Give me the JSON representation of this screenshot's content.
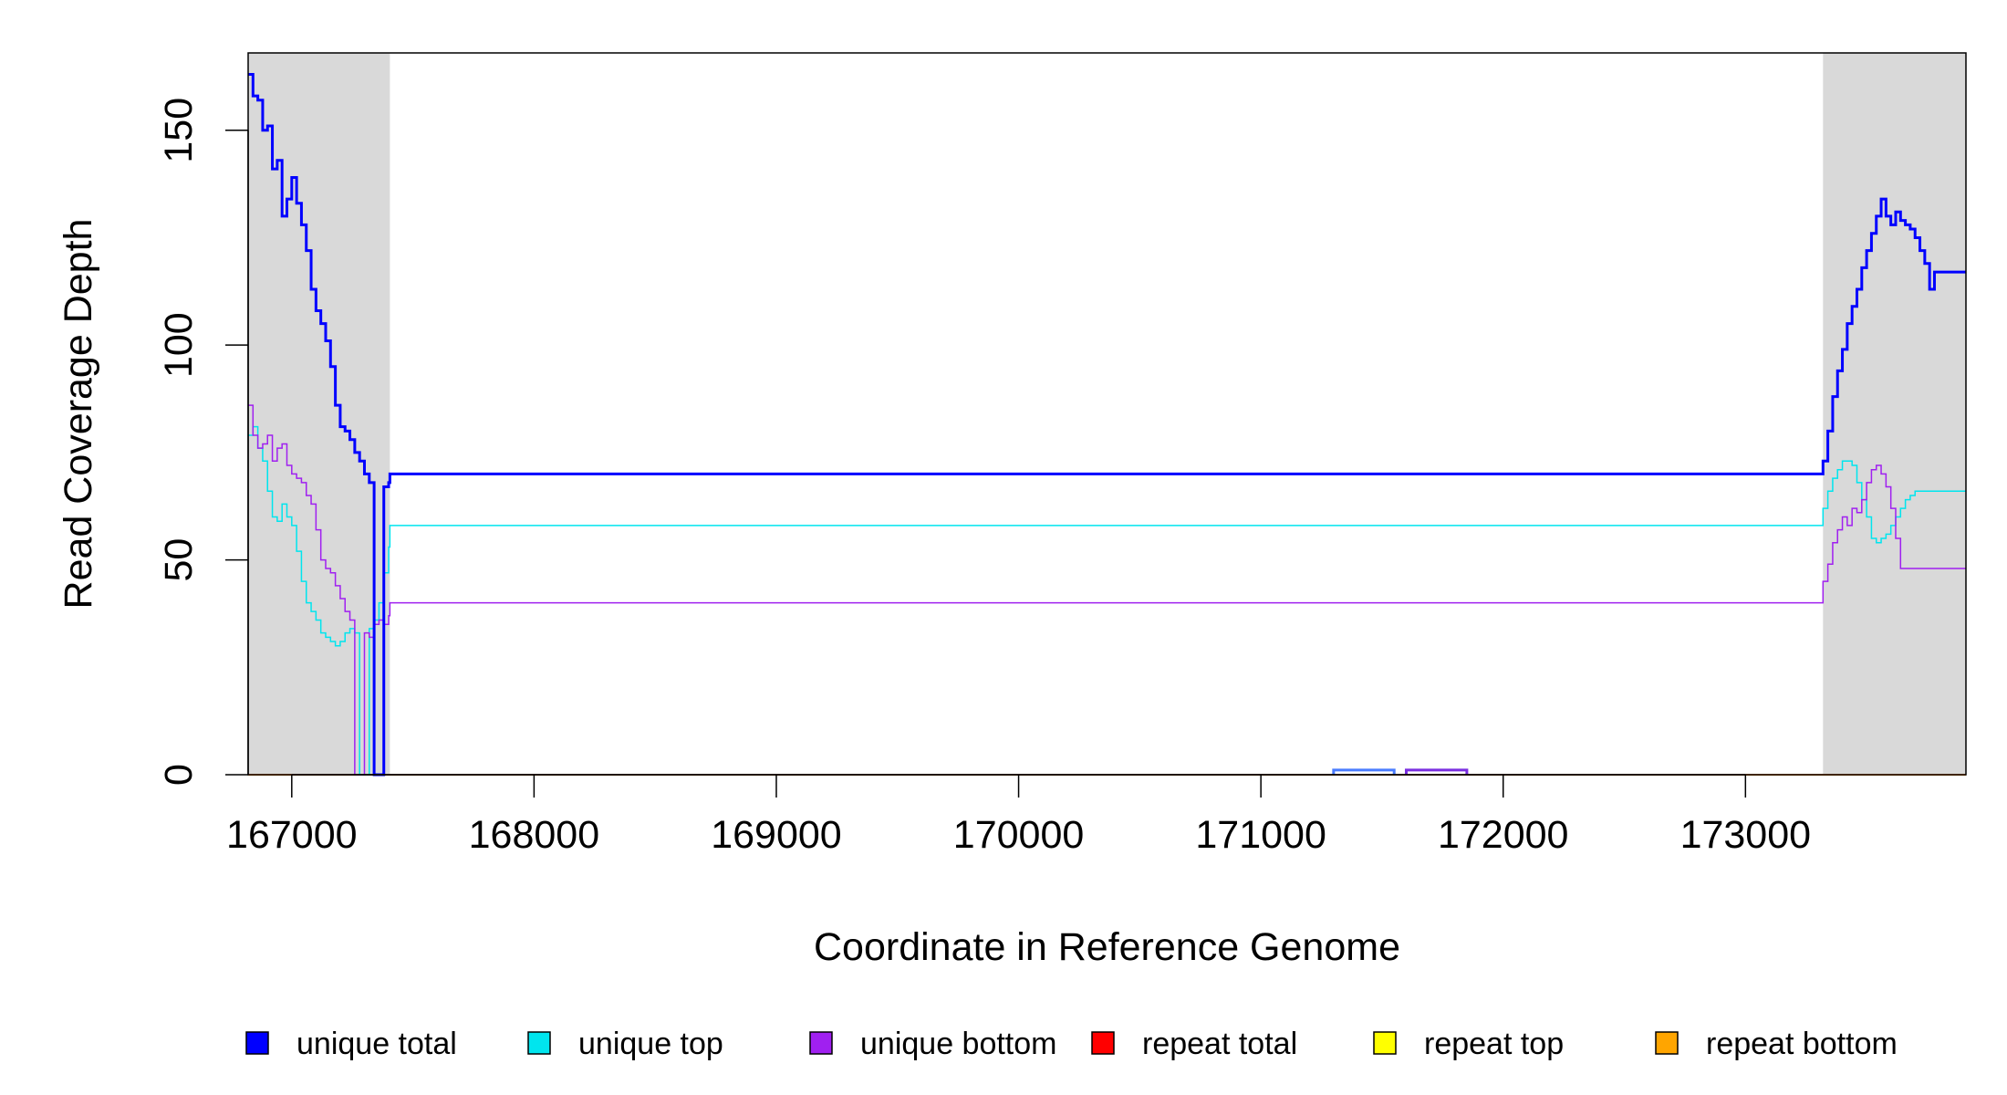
{
  "chart_data": {
    "type": "line",
    "xlabel": "Coordinate in Reference Genome",
    "ylabel": "Read Coverage Depth",
    "xlim": [
      166820,
      173910
    ],
    "ylim": [
      0,
      168
    ],
    "x_ticks": [
      167000,
      168000,
      169000,
      170000,
      171000,
      172000,
      173000
    ],
    "y_ticks": [
      0,
      50,
      100,
      150
    ],
    "grid": false,
    "shaded_regions": [
      {
        "x0": 166820,
        "x1": 167405,
        "color": "#d9d9d9"
      },
      {
        "x0": 173320,
        "x1": 173910,
        "color": "#d9d9d9"
      }
    ],
    "legend": {
      "placement": "bottom",
      "entries": [
        {
          "label": "unique total",
          "color": "#0000ff"
        },
        {
          "label": "unique top",
          "color": "#00e5ee"
        },
        {
          "label": "unique bottom",
          "color": "#a020f0"
        },
        {
          "label": "repeat total",
          "color": "#ff0000"
        },
        {
          "label": "repeat top",
          "color": "#ffff00"
        },
        {
          "label": "repeat bottom",
          "color": "#ffa500"
        }
      ]
    },
    "series": [
      {
        "name": "unique total",
        "color": "#0000ff",
        "x": [
          166820,
          166840,
          166860,
          166880,
          166900,
          166920,
          166940,
          166960,
          166980,
          167000,
          167020,
          167040,
          167060,
          167080,
          167100,
          167120,
          167140,
          167160,
          167180,
          167200,
          167220,
          167240,
          167260,
          167280,
          167300,
          167320,
          167340,
          167360,
          167380,
          167400,
          167405,
          173320,
          173340,
          173360,
          173380,
          173400,
          173420,
          173440,
          173460,
          173480,
          173500,
          173520,
          173540,
          173560,
          173580,
          173600,
          173620,
          173640,
          173660,
          173680,
          173700,
          173720,
          173740,
          173760,
          173780,
          173800,
          173820,
          173840,
          173860,
          173880,
          173900,
          173910
        ],
        "y": [
          163,
          158,
          157,
          150,
          151,
          141,
          143,
          130,
          134,
          139,
          133,
          128,
          122,
          113,
          108,
          105,
          101,
          95,
          86,
          81,
          80,
          78,
          75,
          73,
          70,
          68,
          0,
          0,
          67,
          68,
          70,
          73,
          80,
          88,
          94,
          99,
          105,
          109,
          113,
          118,
          122,
          126,
          130,
          134,
          130,
          128,
          131,
          129,
          128,
          127,
          125,
          122,
          119,
          113,
          117,
          117,
          117,
          117,
          117,
          117,
          117,
          117
        ],
        "width": 3
      },
      {
        "name": "unique top",
        "color": "#00e5ee",
        "x": [
          166820,
          166840,
          166860,
          166880,
          166900,
          166920,
          166940,
          166960,
          166980,
          167000,
          167020,
          167040,
          167060,
          167080,
          167100,
          167120,
          167140,
          167160,
          167180,
          167200,
          167220,
          167240,
          167260,
          167280,
          167300,
          167320,
          167340,
          167360,
          167380,
          167400,
          167405,
          173320,
          173340,
          173360,
          173380,
          173400,
          173420,
          173440,
          173460,
          173480,
          173500,
          173520,
          173540,
          173560,
          173580,
          173600,
          173620,
          173640,
          173660,
          173680,
          173700,
          173720,
          173740,
          173760,
          173780,
          173800,
          173820,
          173840,
          173860,
          173880,
          173900,
          173910
        ],
        "y": [
          79,
          81,
          76,
          73,
          66,
          60,
          59,
          63,
          60,
          58,
          52,
          45,
          40,
          38,
          36,
          33,
          32,
          31,
          30,
          31,
          33,
          34,
          33,
          0,
          0,
          34,
          36,
          40,
          47,
          53,
          58,
          62,
          66,
          69,
          71,
          73,
          73,
          72,
          68,
          64,
          60,
          55,
          54,
          55,
          56,
          58,
          60,
          62,
          64,
          65,
          66,
          66,
          66,
          66,
          66,
          66,
          66,
          66,
          66,
          66,
          66,
          66
        ],
        "width": 1.5
      },
      {
        "name": "unique bottom",
        "color": "#a020f0",
        "x": [
          166820,
          166840,
          166860,
          166880,
          166900,
          166920,
          166940,
          166960,
          166980,
          167000,
          167020,
          167040,
          167060,
          167080,
          167100,
          167120,
          167140,
          167160,
          167180,
          167200,
          167220,
          167240,
          167260,
          167280,
          167300,
          167320,
          167340,
          167360,
          167380,
          167400,
          167405,
          173320,
          173340,
          173360,
          173380,
          173400,
          173420,
          173440,
          173460,
          173480,
          173500,
          173520,
          173540,
          173560,
          173580,
          173600,
          173620,
          173640,
          173660,
          173680,
          173700,
          173720,
          173740,
          173760,
          173780,
          173800,
          173820,
          173840,
          173860,
          173880,
          173900,
          173910
        ],
        "y": [
          86,
          79,
          76,
          77,
          79,
          73,
          76,
          77,
          72,
          70,
          69,
          68,
          65,
          63,
          57,
          50,
          48,
          47,
          44,
          41,
          38,
          36,
          0,
          0,
          33,
          32,
          35,
          36,
          35,
          37,
          40,
          45,
          49,
          54,
          57,
          60,
          58,
          62,
          61,
          64,
          68,
          71,
          72,
          70,
          67,
          62,
          55,
          48,
          48,
          48,
          48,
          48,
          48,
          48,
          48,
          48,
          48,
          48,
          48,
          48,
          48,
          48
        ],
        "width": 1.5
      },
      {
        "name": "repeat total",
        "color": "#ff0000",
        "x": [
          166820,
          173910
        ],
        "y": [
          0,
          0
        ],
        "width": 2
      },
      {
        "name": "repeat top",
        "color": "#ffff00",
        "x": [
          166820,
          173910
        ],
        "y": [
          0,
          0
        ],
        "width": 1.5
      },
      {
        "name": "repeat bottom",
        "color": "#ffa500",
        "x": [
          166820,
          173910
        ],
        "y": [
          0,
          0
        ],
        "width": 1.5
      }
    ]
  }
}
